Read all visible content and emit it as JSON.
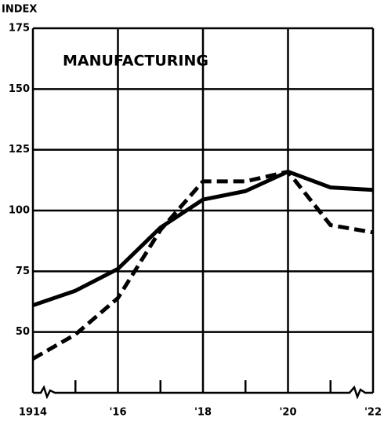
{
  "chart_data": {
    "type": "line",
    "y_axis_label": "INDEX",
    "annotation": "MANUFACTURING",
    "x": [
      1914,
      1915,
      1916,
      1917,
      1918,
      1919,
      1920,
      1921,
      1922
    ],
    "series": [
      {
        "color": "#000000",
        "style": "solid",
        "values": [
          61,
          67,
          76,
          93,
          104.5,
          108,
          116,
          109.5,
          108.5
        ]
      },
      {
        "color": "#000000",
        "style": "dashed",
        "values": [
          39,
          49,
          64,
          92,
          112,
          112,
          116,
          94,
          91
        ]
      }
    ],
    "xlim": [
      1914,
      1922
    ],
    "xticks": [
      1914,
      {
        "value": 1916,
        "label": "'16"
      },
      {
        "value": 1918,
        "label": "'18"
      },
      {
        "value": 1920,
        "label": "'20"
      },
      {
        "value": 1922,
        "label": "'22"
      }
    ],
    "xminorticks": [
      1915,
      1917,
      1919,
      1921
    ],
    "ylim": [
      25,
      175
    ],
    "yticks": [
      50,
      75,
      100,
      125,
      150,
      175
    ],
    "grid": true
  }
}
